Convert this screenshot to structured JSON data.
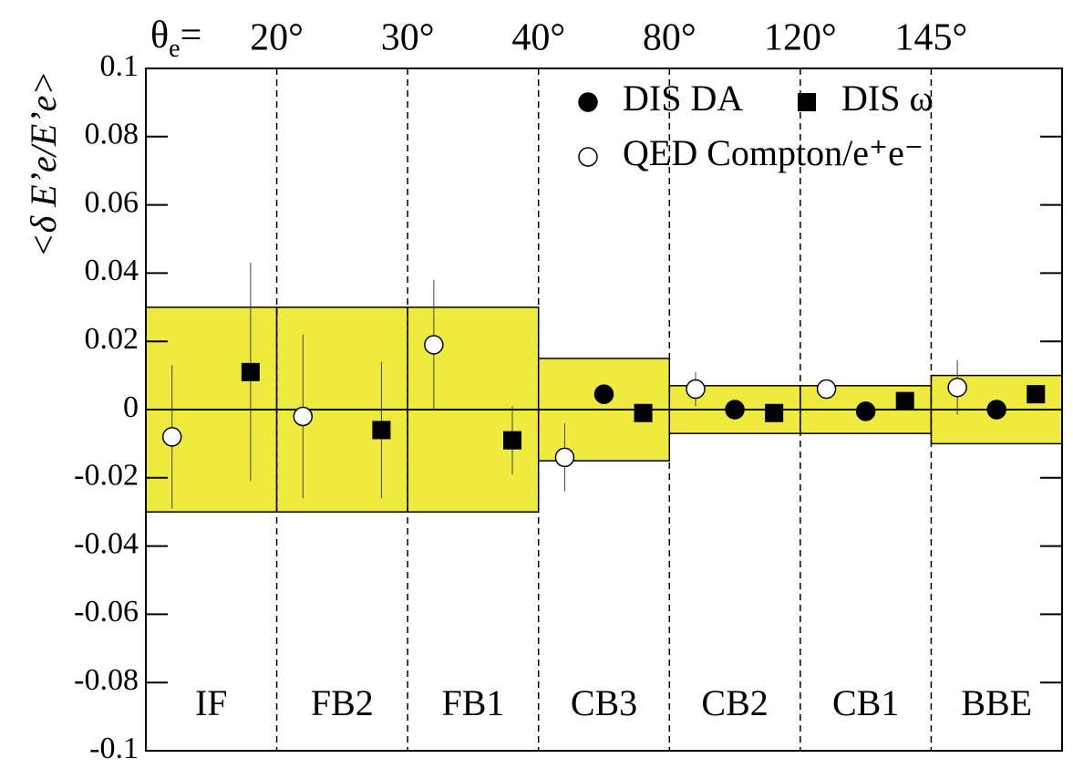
{
  "chart_data": {
    "type": "scatter",
    "top_label": {
      "symbol": "θ",
      "subscript": "e",
      "suffix": "="
    },
    "boundary_labels": [
      "20°",
      "30°",
      "40°",
      "80°",
      "120°",
      "145°"
    ],
    "ylabel": "<δ E’e/E’e>",
    "categories": [
      "IF",
      "FB2",
      "FB1",
      "CB3",
      "CB2",
      "CB1",
      "BBE"
    ],
    "band_values": [
      0.03,
      0.03,
      0.03,
      0.015,
      0.007,
      0.007,
      0.01
    ],
    "band_color": "#eeea3e",
    "ylim": [
      -0.1,
      0.1
    ],
    "yticks": [
      0.1,
      0.08,
      0.06,
      0.04,
      0.02,
      0,
      -0.02,
      -0.04,
      -0.06,
      -0.08,
      -0.1
    ],
    "series": [
      {
        "name": "QED Compton/e⁺e⁻",
        "marker": "open-circle",
        "color": "#000000",
        "values": [
          -0.008,
          -0.002,
          0.019,
          -0.014,
          0.006,
          0.006,
          0.0065
        ],
        "errors": [
          0.021,
          0.024,
          0.019,
          0.01,
          0.005,
          null,
          0.008
        ]
      },
      {
        "name": "DIS DA",
        "marker": "circle",
        "color": "#000000",
        "values": [
          null,
          null,
          null,
          0.0045,
          0,
          -0.0005,
          0
        ]
      },
      {
        "name": "DIS ω",
        "marker": "square",
        "color": "#000000",
        "values": [
          0.011,
          -0.006,
          -0.009,
          -0.001,
          -0.001,
          0.0025,
          0.0045
        ],
        "errors": [
          0.032,
          0.02,
          0.01,
          null,
          null,
          null,
          null
        ]
      }
    ]
  }
}
